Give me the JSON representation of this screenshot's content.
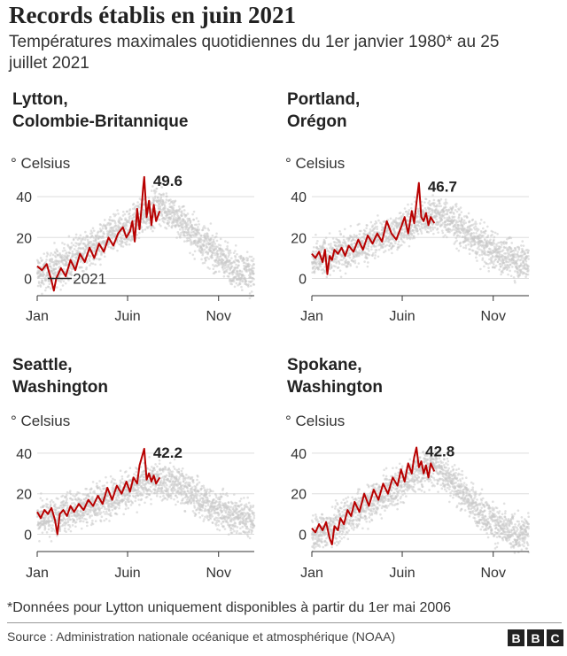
{
  "title": "Records établis en juin 2021",
  "subtitle": "Températures maximales quotidiennes du 1er janvier 1980* au 25 juillet 2021",
  "footnote": "*Données pour Lytton uniquement disponibles à partir du 1er mai 2006",
  "source": "Source : Administration nationale océanique et atmosphérique (NOAA)",
  "logo": [
    "B",
    "B",
    "C"
  ],
  "colors": {
    "history": "#c8c8c8",
    "year2021": "#b80000",
    "grid": "#dddddd",
    "axis": "#333333"
  },
  "chart_data": [
    {
      "type": "line",
      "title_lines": [
        "Lytton,",
        "Colombie-Britannique"
      ],
      "ylabel": "° Celsius",
      "legend_2021": "2021",
      "ylim": [
        -5,
        50
      ],
      "yticks": [
        0,
        20,
        40
      ],
      "xticks": [
        {
          "day": 0,
          "label": "Jan"
        },
        {
          "day": 152,
          "label": "Juin"
        },
        {
          "day": 305,
          "label": "Nov"
        }
      ],
      "record_label": "49.6",
      "climatology": {
        "day": [
          0,
          30,
          60,
          90,
          120,
          150,
          180,
          200,
          210,
          240,
          270,
          300,
          330,
          365
        ],
        "value": [
          2,
          5,
          10,
          15,
          20,
          24,
          32,
          35,
          35,
          28,
          20,
          12,
          5,
          2
        ]
      },
      "series_2021": {
        "day": [
          0,
          8,
          16,
          24,
          28,
          32,
          40,
          48,
          56,
          64,
          72,
          80,
          88,
          96,
          104,
          112,
          120,
          128,
          136,
          144,
          150,
          156,
          160,
          164,
          168,
          172,
          176,
          178,
          180,
          184,
          188,
          192,
          196,
          200,
          206
        ],
        "value": [
          6,
          4,
          7,
          -1,
          -6,
          0,
          5,
          1,
          9,
          4,
          12,
          8,
          15,
          10,
          17,
          13,
          20,
          16,
          22,
          25,
          20,
          23,
          28,
          18,
          34,
          24,
          36,
          44,
          49.6,
          30,
          38,
          26,
          36,
          28,
          33
        ]
      }
    },
    {
      "type": "line",
      "title_lines": [
        "Portland,",
        "Orégon"
      ],
      "ylabel": "° Celsius",
      "ylim": [
        -5,
        50
      ],
      "yticks": [
        0,
        20,
        40
      ],
      "xticks": [
        {
          "day": 0,
          "label": "Jan"
        },
        {
          "day": 152,
          "label": "Juin"
        },
        {
          "day": 305,
          "label": "Nov"
        }
      ],
      "record_label": "46.7",
      "climatology": {
        "day": [
          0,
          30,
          60,
          90,
          120,
          150,
          180,
          200,
          210,
          240,
          270,
          300,
          330,
          365
        ],
        "value": [
          8,
          11,
          14,
          17,
          21,
          24,
          29,
          31,
          31,
          27,
          20,
          14,
          10,
          8
        ]
      },
      "series_2021": {
        "day": [
          0,
          6,
          12,
          18,
          22,
          26,
          30,
          34,
          38,
          44,
          50,
          56,
          62,
          70,
          78,
          86,
          94,
          102,
          110,
          118,
          126,
          134,
          142,
          150,
          156,
          162,
          168,
          172,
          176,
          178,
          180,
          184,
          188,
          192,
          196,
          200,
          206
        ],
        "value": [
          12,
          10,
          13,
          8,
          14,
          2,
          11,
          9,
          14,
          12,
          15,
          11,
          16,
          13,
          19,
          14,
          21,
          17,
          22,
          18,
          28,
          22,
          19,
          25,
          30,
          22,
          33,
          27,
          37,
          42,
          46.7,
          30,
          28,
          32,
          26,
          30,
          27
        ]
      }
    },
    {
      "type": "line",
      "title_lines": [
        "Seattle,",
        "Washington"
      ],
      "ylabel": "° Celsius",
      "ylim": [
        -5,
        50
      ],
      "yticks": [
        0,
        20,
        40
      ],
      "xticks": [
        {
          "day": 0,
          "label": "Jan"
        },
        {
          "day": 152,
          "label": "Juin"
        },
        {
          "day": 305,
          "label": "Nov"
        }
      ],
      "record_label": "42.2",
      "climatology": {
        "day": [
          0,
          30,
          60,
          90,
          120,
          150,
          180,
          200,
          210,
          240,
          270,
          300,
          330,
          365
        ],
        "value": [
          8,
          9,
          12,
          15,
          18,
          21,
          25,
          27,
          27,
          24,
          18,
          13,
          9,
          8
        ]
      },
      "series_2021": {
        "day": [
          0,
          6,
          12,
          18,
          24,
          30,
          34,
          38,
          44,
          50,
          56,
          62,
          70,
          78,
          86,
          94,
          102,
          110,
          118,
          126,
          134,
          142,
          150,
          156,
          162,
          168,
          172,
          176,
          180,
          184,
          188,
          192,
          196,
          200,
          206
        ],
        "value": [
          11,
          8,
          12,
          10,
          13,
          7,
          0,
          10,
          12,
          9,
          14,
          11,
          15,
          12,
          17,
          14,
          19,
          15,
          23,
          17,
          24,
          20,
          26,
          21,
          28,
          25,
          34,
          38,
          42.2,
          27,
          30,
          26,
          29,
          25,
          28
        ]
      }
    },
    {
      "type": "line",
      "title_lines": [
        "Spokane,",
        "Washington"
      ],
      "ylabel": "° Celsius",
      "ylim": [
        -5,
        50
      ],
      "yticks": [
        0,
        20,
        40
      ],
      "xticks": [
        {
          "day": 0,
          "label": "Jan"
        },
        {
          "day": 152,
          "label": "Juin"
        },
        {
          "day": 305,
          "label": "Nov"
        }
      ],
      "record_label": "42.8",
      "climatology": {
        "day": [
          0,
          30,
          60,
          90,
          120,
          150,
          180,
          200,
          210,
          240,
          270,
          300,
          330,
          365
        ],
        "value": [
          0,
          3,
          8,
          14,
          20,
          25,
          31,
          33,
          33,
          25,
          15,
          7,
          1,
          0
        ]
      },
      "series_2021": {
        "day": [
          0,
          6,
          12,
          18,
          24,
          30,
          34,
          38,
          44,
          48,
          54,
          60,
          66,
          72,
          80,
          88,
          96,
          104,
          112,
          120,
          128,
          136,
          144,
          150,
          156,
          162,
          168,
          172,
          176,
          180,
          184,
          188,
          192,
          196,
          200,
          206
        ],
        "value": [
          3,
          1,
          5,
          2,
          6,
          -2,
          -5,
          4,
          2,
          8,
          5,
          12,
          9,
          16,
          11,
          20,
          14,
          22,
          17,
          25,
          20,
          28,
          24,
          32,
          26,
          35,
          30,
          38,
          42.8,
          33,
          36,
          30,
          34,
          28,
          35,
          31
        ]
      }
    }
  ]
}
